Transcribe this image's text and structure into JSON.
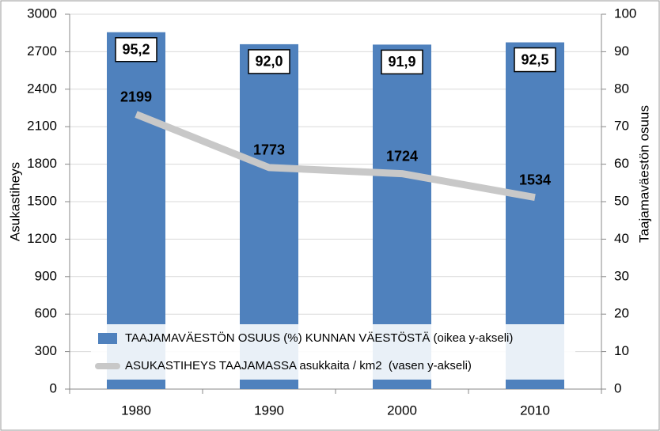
{
  "chart_data": {
    "type": "combo",
    "categories": [
      "1980",
      "1990",
      "2000",
      "2010"
    ],
    "series": [
      {
        "name": "TAAJAMAVÄESTÖN OSUUS (%) KUNNAN VÄESTÖSTÄ (oikea y-akseli)",
        "type": "bar",
        "axis": "y2",
        "color": "#4f81bd",
        "values": [
          95.2,
          92.0,
          91.9,
          92.5
        ],
        "value_labels": [
          "95,2",
          "92,0",
          "91,9",
          "92,5"
        ]
      },
      {
        "name": "ASUKASTIHEYS TAAJAMASSA asukkaita / km2  (vasen y-akseli)",
        "type": "line",
        "axis": "y",
        "color": "#c8c8c8",
        "values": [
          2199,
          1773,
          1724,
          1534
        ]
      }
    ],
    "ylabel": "Asukastiheys",
    "y2label": "Taajamaväestön osuus",
    "ylim": [
      0,
      3000
    ],
    "yticks": [
      0,
      300,
      600,
      900,
      1200,
      1500,
      1800,
      2100,
      2400,
      2700,
      3000
    ],
    "y2lim": [
      0,
      100
    ],
    "y2ticks": [
      0,
      10,
      20,
      30,
      40,
      50,
      60,
      70,
      80,
      90,
      100
    ],
    "grid": true
  }
}
